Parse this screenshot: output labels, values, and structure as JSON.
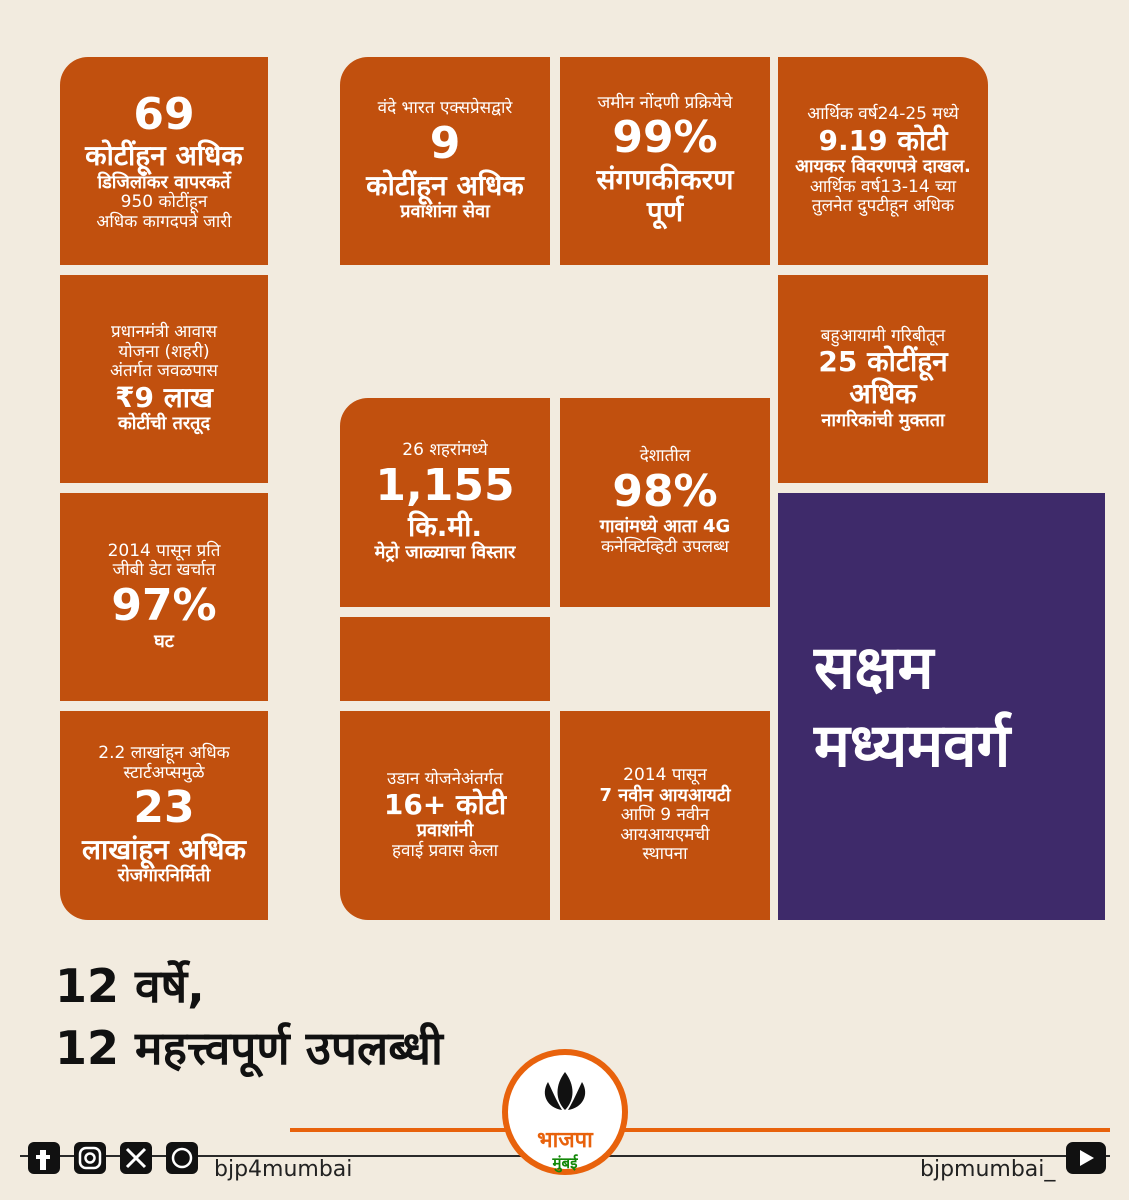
{
  "tiles": [
    {
      "lines": [
        "69",
        "कोटींहून अधिक",
        "डिजिलॉकर वापरकर्ते",
        "950 कोटींहून",
        "अधिक कागदपत्रे जारी"
      ]
    },
    {
      "lines": [
        "वंदे भारत एक्सप्रेसद्वारे",
        "9",
        "कोटींहून अधिक",
        "प्रवाशांना सेवा"
      ]
    },
    {
      "lines": [
        "जमीन नोंदणी प्रक्रियेचे",
        "99%",
        "संगणकीकरण",
        "पूर्ण"
      ]
    },
    {
      "lines": [
        "आर्थिक वर्ष24-25 मध्ये",
        "9.19 कोटी",
        "आयकर विवरणपत्रे दाखल.",
        "आर्थिक वर्ष13-14 च्या",
        "तुलनेत दुपटीहून अधिक"
      ]
    },
    {
      "lines": [
        "प्रधानमंत्री आवास",
        "योजना (शहरी)",
        "अंतर्गत जवळपास",
        "₹9 लाख",
        "कोटींची तरतूद"
      ]
    },
    {
      "lines": [
        "बहुआयामी गरिबीतून",
        "25 कोटींहून",
        "अधिक",
        "नागरिकांची मुक्तता"
      ]
    },
    {
      "lines": [
        "26 शहरांमध्ये",
        "1,155",
        "कि.मी.",
        "मेट्रो जाळ्याचा विस्तार"
      ]
    },
    {
      "lines": [
        "देशातील",
        "98%",
        "गावांमध्ये आता 4G",
        "कनेक्टिव्हिटी उपलब्ध"
      ]
    },
    {
      "lines": [
        "2014 पासून प्रति",
        "जीबी डेटा खर्चात",
        "97%",
        "घट"
      ]
    },
    {
      "lines": [
        "2.2 लाखांहून अधिक",
        "स्टार्टअप्समुळे",
        "23",
        "लाखांहून अधिक",
        "रोजगारनिर्मिती"
      ]
    },
    {
      "lines": [
        "उडान योजनेअंतर्गत",
        "16+ कोटी",
        "प्रवाशांनी",
        "हवाई प्रवास केला"
      ]
    },
    {
      "lines": [
        "2014 पासून",
        "7 नवीन आयआयटी",
        "आणि 9 नवीन",
        "आयआयएमची",
        "स्थापना"
      ]
    }
  ],
  "highlight": {
    "lines": [
      "सक्षम",
      "मध्यमवर्ग"
    ]
  },
  "title": {
    "lines": [
      "12 वर्षे,",
      "12 महत्त्वपूर्ण उपलब्धी"
    ]
  },
  "logo": {
    "name": "भाजपा",
    "city": "मुंबई"
  },
  "footer": {
    "left_handle": "bjp4mumbai",
    "right_handle": "bjpmumbai_"
  }
}
